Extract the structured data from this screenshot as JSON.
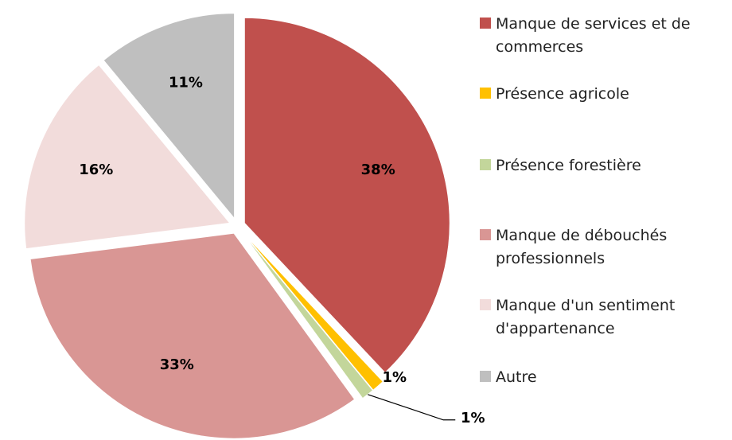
{
  "chart_data": {
    "type": "pie",
    "categories": [
      "Manque de services et de commerces",
      "Présence agricole",
      "Présence forestière",
      "Manque de débouchés professionnels",
      "Manque d'un sentiment d'appartenance",
      "Autre"
    ],
    "values": [
      38,
      1,
      1,
      33,
      16,
      11
    ],
    "value_labels": [
      "38%",
      "1%",
      "1%",
      "33%",
      "16%",
      "11%"
    ],
    "colors": [
      "#c0504d",
      "#ffc000",
      "#c3d69b",
      "#d99694",
      "#f2dcdb",
      "#bfbfbf"
    ],
    "legend": "right"
  }
}
